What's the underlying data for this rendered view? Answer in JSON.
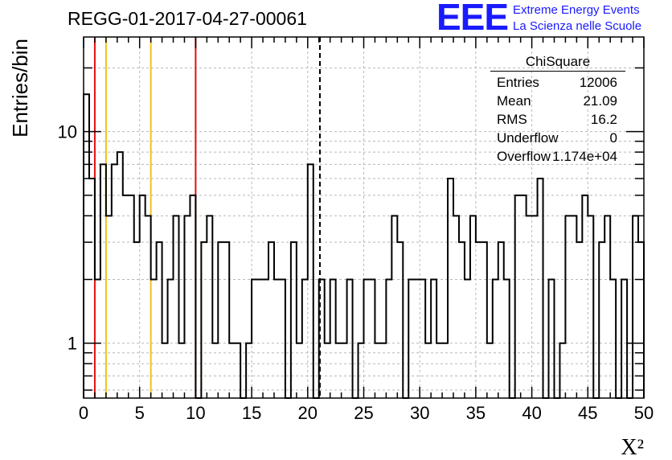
{
  "chart_data": {
    "type": "bar",
    "title": "REGG-01-2017-04-27-00061",
    "xlabel": "X²",
    "ylabel": "Entries/bin",
    "xlim": [
      0,
      50
    ],
    "ylim": [
      0.55,
      28
    ],
    "yscale": "log",
    "grid": true,
    "x_ticks": [
      "0",
      "5",
      "10",
      "15",
      "20",
      "25",
      "30",
      "35",
      "40",
      "45",
      "50"
    ],
    "y_ticks": [
      "1",
      "10"
    ],
    "bin_width": 0.5,
    "values": [
      15,
      6,
      2,
      7,
      4,
      7,
      8,
      5,
      5,
      3,
      5,
      4,
      2,
      3,
      1,
      2,
      4,
      1,
      4,
      5,
      0,
      3,
      4,
      1,
      3,
      3,
      1,
      1,
      0,
      1,
      2,
      2,
      2,
      3,
      2,
      2,
      0,
      3,
      1,
      2,
      7,
      0,
      2,
      1,
      2,
      1,
      1,
      2,
      0,
      1,
      2,
      2,
      1,
      1,
      2,
      4,
      3,
      0,
      2,
      2,
      2,
      1,
      2,
      1,
      1,
      6,
      4,
      3,
      2,
      4,
      3,
      3,
      1,
      2,
      3,
      2,
      0,
      5,
      5,
      4,
      4,
      6,
      0,
      2,
      0,
      1,
      4,
      4,
      3,
      5,
      4,
      0,
      3,
      4,
      2,
      0,
      2,
      0,
      4,
      3
    ],
    "vertical_lines": [
      {
        "x": 1,
        "color": "#e01010",
        "style": "solid"
      },
      {
        "x": 2,
        "color": "#f0c020",
        "style": "solid"
      },
      {
        "x": 6,
        "color": "#f0c020",
        "style": "solid"
      },
      {
        "x": 10,
        "color": "#e01010",
        "style": "solid"
      },
      {
        "x": 21.09,
        "color": "#000000",
        "style": "dashed"
      }
    ]
  },
  "stats_box": {
    "title": "ChiSquare",
    "rows": [
      {
        "label": "Entries",
        "value": "12006"
      },
      {
        "label": "Mean",
        "value": "21.09"
      },
      {
        "label": "RMS",
        "value": "16.2"
      },
      {
        "label": "Underflow",
        "value": "0"
      },
      {
        "label": "Overflow",
        "value": "1.174e+04"
      }
    ]
  },
  "logo": {
    "mark": "EEE",
    "line1": "Extreme Energy Events",
    "line2": "La Scienza nelle Scuole",
    "color": "#1a1aff"
  }
}
